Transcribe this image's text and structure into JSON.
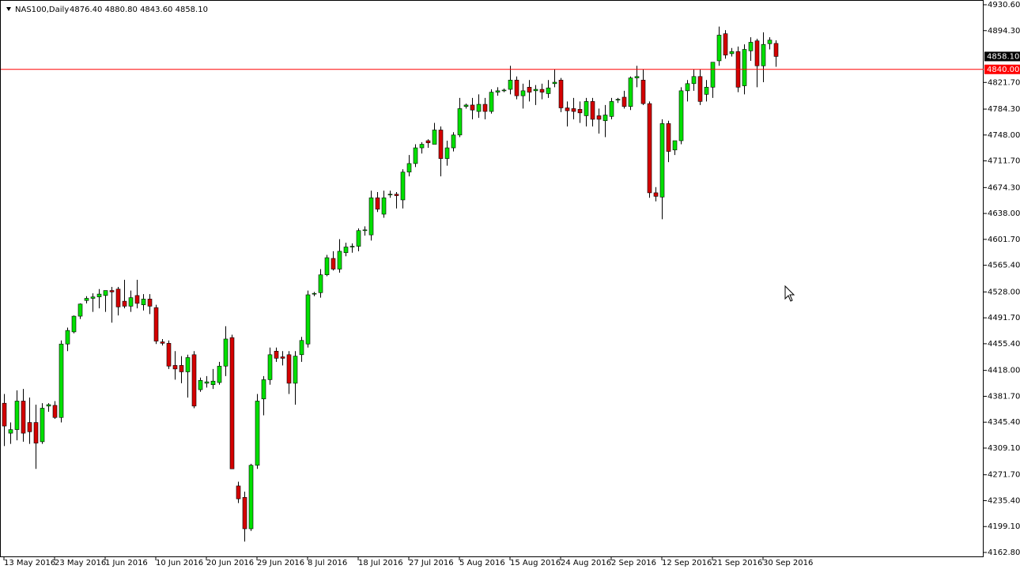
{
  "header": {
    "symbol": "NAS100,Daily",
    "ohlc": "4876.40 4880.80 4843.60 4858.10"
  },
  "chart_data": {
    "type": "candlestick",
    "categories": [
      "13 May 2016",
      null,
      null,
      null,
      null,
      null,
      null,
      null,
      "23 May 2016",
      null,
      null,
      null,
      null,
      null,
      null,
      null,
      "1 Jun 2016",
      null,
      null,
      null,
      null,
      null,
      null,
      null,
      "10 Jun 2016",
      null,
      null,
      null,
      null,
      null,
      null,
      null,
      "20 Jun 2016",
      null,
      null,
      null,
      null,
      null,
      null,
      null,
      "29 Jun 2016",
      null,
      null,
      null,
      null,
      null,
      null,
      null,
      "8 Jul 2016",
      null,
      null,
      null,
      null,
      null,
      null,
      null,
      "18 Jul 2016",
      null,
      null,
      null,
      null,
      null,
      null,
      null,
      "27 Jul 2016",
      null,
      null,
      null,
      null,
      null,
      null,
      null,
      "5 Aug 2016",
      null,
      null,
      null,
      null,
      null,
      null,
      null,
      "15 Aug 2016",
      null,
      null,
      null,
      null,
      null,
      null,
      null,
      "24 Aug 2016",
      null,
      null,
      null,
      null,
      null,
      null,
      null,
      "2 Sep 2016",
      null,
      null,
      null,
      null,
      null,
      null,
      null,
      "12 Sep 2016",
      null,
      null,
      null,
      null,
      null,
      null,
      null,
      "21 Sep 2016",
      null,
      null,
      null,
      null,
      null,
      null,
      null,
      "30 Sep 2016",
      null,
      null
    ],
    "open": [
      4372,
      4330,
      4335,
      4375,
      4345,
      4345,
      4318,
      4368,
      4369,
      4352,
      4455,
      4472,
      4494,
      4516,
      4519,
      4521,
      4523,
      4530,
      4532,
      4515,
      4508,
      4523,
      4510,
      4518,
      4506,
      4458,
      4456,
      4425,
      4425,
      4416,
      4440,
      4391,
      4400,
      4398,
      4401,
      4424,
      4464,
      4256,
      4240,
      4196,
      4285,
      4378,
      4405,
      4445,
      4437,
      4440,
      4400,
      4440,
      4455,
      4525,
      4527,
      4552,
      4575,
      4560,
      4583,
      4592,
      4592,
      4614,
      4608,
      4660,
      4637,
      4664,
      4665,
      4657,
      4696,
      4708,
      4730,
      4740,
      4735,
      4755,
      4715,
      4730,
      4748,
      4788,
      4790,
      4781,
      4791,
      4781,
      4808,
      4810,
      4812,
      4825,
      4803,
      4815,
      4810,
      4812,
      4806,
      4820,
      4825,
      4786,
      4785,
      4784,
      4775,
      4795,
      4775,
      4768,
      4774,
      4797,
      4801,
      4788,
      4828,
      4825,
      4792,
      4667,
      4661,
      4764,
      4727,
      4740,
      4810,
      4820,
      4830,
      4805,
      4815,
      4852,
      4890,
      4862,
      4865,
      4817,
      4866,
      4880,
      4845,
      4876,
      4876.4
    ],
    "high": [
      4385,
      4345,
      4390,
      4392,
      4380,
      4370,
      4372,
      4372,
      4375,
      4460,
      4478,
      4495,
      4512,
      4522,
      4526,
      4532,
      4530,
      4535,
      4535,
      4545,
      4530,
      4545,
      4525,
      4525,
      4510,
      4462,
      4460,
      4445,
      4438,
      4440,
      4445,
      4408,
      4410,
      4420,
      4430,
      4480,
      4468,
      4262,
      4248,
      4287,
      4385,
      4410,
      4450,
      4450,
      4445,
      4445,
      4445,
      4465,
      4530,
      4528,
      4560,
      4580,
      4585,
      4602,
      4597,
      4596,
      4617,
      4620,
      4670,
      4668,
      4670,
      4670,
      4668,
      4700,
      4720,
      4735,
      4738,
      4742,
      4765,
      4760,
      4740,
      4752,
      4800,
      4792,
      4800,
      4805,
      4800,
      4812,
      4815,
      4813,
      4845,
      4830,
      4820,
      4825,
      4818,
      4820,
      4825,
      4840,
      4828,
      4795,
      4800,
      4795,
      4800,
      4800,
      4785,
      4790,
      4800,
      4800,
      4810,
      4830,
      4845,
      4840,
      4795,
      4675,
      4770,
      4768,
      4740,
      4815,
      4825,
      4840,
      4840,
      4825,
      4850,
      4900,
      4895,
      4870,
      4872,
      4875,
      4885,
      4883,
      4892,
      4885,
      4880.8
    ],
    "low": [
      4312,
      4315,
      4320,
      4318,
      4315,
      4280,
      4315,
      4360,
      4350,
      4345,
      4445,
      4470,
      4490,
      4512,
      4500,
      4505,
      4500,
      4485,
      4495,
      4505,
      4500,
      4505,
      4502,
      4497,
      4455,
      4453,
      4420,
      4405,
      4400,
      4380,
      4365,
      4388,
      4394,
      4392,
      4398,
      4410,
      4280,
      4232,
      4178,
      4193,
      4280,
      4355,
      4398,
      4430,
      4425,
      4385,
      4370,
      4430,
      4450,
      4522,
      4520,
      4550,
      4558,
      4555,
      4578,
      4583,
      4585,
      4607,
      4600,
      4640,
      4632,
      4660,
      4645,
      4645,
      4690,
      4703,
      4722,
      4730,
      4735,
      4690,
      4705,
      4725,
      4745,
      4785,
      4770,
      4772,
      4770,
      4778,
      4803,
      4808,
      4805,
      4798,
      4785,
      4795,
      4790,
      4798,
      4800,
      4815,
      4780,
      4760,
      4770,
      4765,
      4760,
      4760,
      4750,
      4745,
      4770,
      4793,
      4785,
      4783,
      4815,
      4790,
      4660,
      4655,
      4630,
      4710,
      4720,
      4735,
      4795,
      4810,
      4790,
      4795,
      4800,
      4845,
      4855,
      4858,
      4808,
      4805,
      4852,
      4815,
      4822,
      4868,
      4843.6
    ],
    "close": [
      4340,
      4335,
      4375,
      4330,
      4332,
      4316,
      4365,
      4370,
      4352,
      4455,
      4474,
      4494,
      4511,
      4519,
      4521,
      4525,
      4530,
      4528,
      4507,
      4508,
      4520,
      4512,
      4518,
      4508,
      4459,
      4456,
      4424,
      4420,
      4416,
      4436,
      4368,
      4404,
      4402,
      4403,
      4424,
      4462,
      4280,
      4238,
      4196,
      4285,
      4375,
      4405,
      4440,
      4435,
      4435,
      4400,
      4438,
      4460,
      4524,
      4526,
      4552,
      4576,
      4560,
      4585,
      4591,
      4592,
      4614,
      4615,
      4660,
      4644,
      4660,
      4665,
      4663,
      4696,
      4708,
      4730,
      4735,
      4737,
      4755,
      4715,
      4730,
      4748,
      4785,
      4790,
      4783,
      4791,
      4781,
      4808,
      4810,
      4811,
      4825,
      4803,
      4810,
      4808,
      4812,
      4808,
      4814,
      4822,
      4786,
      4782,
      4781,
      4779,
      4795,
      4770,
      4770,
      4776,
      4795,
      4798,
      4788,
      4828,
      4830,
      4792,
      4667,
      4662,
      4764,
      4725,
      4740,
      4810,
      4820,
      4830,
      4795,
      4815,
      4850,
      4888,
      4860,
      4865,
      4815,
      4868,
      4878,
      4845,
      4875,
      4881,
      4858.1
    ],
    "up_color": "#00e000",
    "down_color": "#d40000",
    "wick_color": "#000000",
    "ylim": [
      4162.8,
      4930.6
    ],
    "yticks": [
      {
        "value": 4930.6,
        "label": "4930.60"
      },
      {
        "value": 4894.3,
        "label": "4894.30"
      },
      {
        "value": 4821.7,
        "label": "4821.70"
      },
      {
        "value": 4784.3,
        "label": "4784.30"
      },
      {
        "value": 4748.0,
        "label": "4748.00"
      },
      {
        "value": 4711.7,
        "label": "4711.70"
      },
      {
        "value": 4674.3,
        "label": "4674.30"
      },
      {
        "value": 4638.0,
        "label": "4638.00"
      },
      {
        "value": 4601.7,
        "label": "4601.70"
      },
      {
        "value": 4565.4,
        "label": "4565.40"
      },
      {
        "value": 4528.0,
        "label": "4528.00"
      },
      {
        "value": 4491.7,
        "label": "4491.70"
      },
      {
        "value": 4455.4,
        "label": "4455.40"
      },
      {
        "value": 4418.0,
        "label": "4418.00"
      },
      {
        "value": 4381.7,
        "label": "4381.70"
      },
      {
        "value": 4345.4,
        "label": "4345.40"
      },
      {
        "value": 4309.1,
        "label": "4309.10"
      },
      {
        "value": 4271.7,
        "label": "4271.70"
      },
      {
        "value": 4235.4,
        "label": "4235.40"
      },
      {
        "value": 4199.1,
        "label": "4199.10"
      },
      {
        "value": 4162.8,
        "label": "4162.80"
      }
    ],
    "hlines": [
      {
        "value": 4840.0,
        "label": "4840.00",
        "color": "#ff0000"
      }
    ],
    "last_price": {
      "value": 4858.1,
      "label": "4858.10"
    }
  }
}
